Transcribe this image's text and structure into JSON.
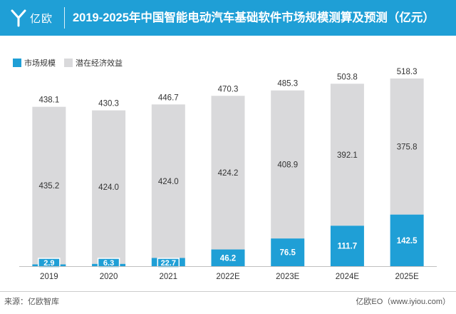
{
  "header": {
    "logo_text": "亿欧",
    "title": "2019-2025年中国智能电动汽车基础软件市场规模测算及预测（亿元）"
  },
  "colors": {
    "header_bg": "#1f9fd6",
    "market": "#1f9fd6",
    "potential": "#d9d9db"
  },
  "chart_data": {
    "type": "bar",
    "stacked": true,
    "categories": [
      "2019",
      "2020",
      "2021",
      "2022E",
      "2023E",
      "2024E",
      "2025E"
    ],
    "series": [
      {
        "name": "市场规模",
        "values": [
          2.9,
          6.3,
          22.7,
          46.2,
          76.5,
          111.7,
          142.5
        ]
      },
      {
        "name": "潜在经济效益",
        "values": [
          435.2,
          424.0,
          424.0,
          424.2,
          408.9,
          392.1,
          375.8
        ]
      }
    ],
    "totals": [
      438.1,
      430.3,
      446.7,
      470.3,
      485.3,
      503.8,
      518.3
    ],
    "data_labels": {
      "market": [
        "2.9",
        "6.3",
        "22.7",
        "46.2",
        "76.5",
        "111.7",
        "142.5"
      ],
      "potential": [
        "435.2",
        "424.0",
        "424.0",
        "424.2",
        "408.9",
        "392.1",
        "375.8"
      ],
      "totals": [
        "438.1",
        "430.3",
        "446.7",
        "470.3",
        "485.3",
        "503.8",
        "518.3"
      ]
    },
    "ylim": [
      0,
      518.3
    ],
    "legend_position": "top-left",
    "grid": false
  },
  "footer": {
    "source": "来源：亿欧智库",
    "brand": "亿欧EO（www.iyiou.com）"
  }
}
